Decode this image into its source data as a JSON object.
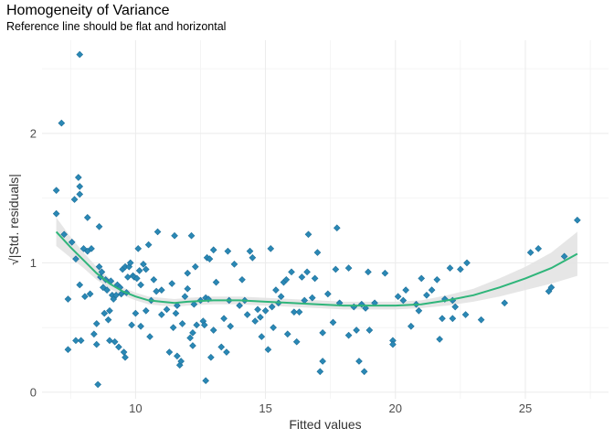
{
  "chart_data": {
    "type": "scatter",
    "title": "Homogeneity of Variance",
    "subtitle": "Reference line should be flat and horizontal",
    "xlabel": "Fitted values",
    "ylabel": "√|Std. residuals|",
    "xlim": [
      6.4,
      28.2
    ],
    "ylim": [
      -0.05,
      2.72
    ],
    "x_ticks": [
      10,
      15,
      20,
      25
    ],
    "y_ticks": [
      0,
      1,
      2
    ],
    "grid": true,
    "colors": {
      "points": "#2a88b5",
      "point_edge": "#1d6f99",
      "smooth": "#2fb57a",
      "band": "#e3e3e3",
      "grid": "#ebebeb"
    },
    "points": [
      [
        6.95,
        1.56
      ],
      [
        6.95,
        1.38
      ],
      [
        7.15,
        2.08
      ],
      [
        7.25,
        1.22
      ],
      [
        7.4,
        0.72
      ],
      [
        7.4,
        0.33
      ],
      [
        7.55,
        1.16
      ],
      [
        7.65,
        1.49
      ],
      [
        7.7,
        0.4
      ],
      [
        7.7,
        1.03
      ],
      [
        7.8,
        1.66
      ],
      [
        7.85,
        1.59
      ],
      [
        7.85,
        2.61
      ],
      [
        7.85,
        1.53
      ],
      [
        7.85,
        0.83
      ],
      [
        7.9,
        0.4
      ],
      [
        8.0,
        1.11
      ],
      [
        8.05,
        0.74
      ],
      [
        8.15,
        1.35
      ],
      [
        8.15,
        1.09
      ],
      [
        8.25,
        0.76
      ],
      [
        8.3,
        1.11
      ],
      [
        8.4,
        0.45
      ],
      [
        8.5,
        0.53
      ],
      [
        8.5,
        0.37
      ],
      [
        8.55,
        0.06
      ],
      [
        8.6,
        1.28
      ],
      [
        8.6,
        0.97
      ],
      [
        8.65,
        0.89
      ],
      [
        8.7,
        0.93
      ],
      [
        8.75,
        0.81
      ],
      [
        8.8,
        0.61
      ],
      [
        8.85,
        0.87
      ],
      [
        8.9,
        0.79
      ],
      [
        8.95,
        0.56
      ],
      [
        9.0,
        0.4
      ],
      [
        9.0,
        0.63
      ],
      [
        9.05,
        0.86
      ],
      [
        9.1,
        0.75
      ],
      [
        9.15,
        0.72
      ],
      [
        9.2,
        0.39
      ],
      [
        9.25,
        0.75
      ],
      [
        9.3,
        0.83
      ],
      [
        9.35,
        0.35
      ],
      [
        9.4,
        0.81
      ],
      [
        9.45,
        0.76
      ],
      [
        9.5,
        0.95
      ],
      [
        9.55,
        0.31
      ],
      [
        9.6,
        0.97
      ],
      [
        9.6,
        0.27
      ],
      [
        9.65,
        0.77
      ],
      [
        9.7,
        0.89
      ],
      [
        9.75,
        0.97
      ],
      [
        9.8,
        1.0
      ],
      [
        9.85,
        0.52
      ],
      [
        9.9,
        0.9
      ],
      [
        9.95,
        0.89
      ],
      [
        10.0,
        0.61
      ],
      [
        10.05,
        0.88
      ],
      [
        10.1,
        1.11
      ],
      [
        10.15,
        0.94
      ],
      [
        10.2,
        0.83
      ],
      [
        10.2,
        0.51
      ],
      [
        10.3,
        0.99
      ],
      [
        10.4,
        0.95
      ],
      [
        10.4,
        0.63
      ],
      [
        10.5,
        1.14
      ],
      [
        10.55,
        0.43
      ],
      [
        10.6,
        0.71
      ],
      [
        10.7,
        0.87
      ],
      [
        10.8,
        0.78
      ],
      [
        10.85,
        1.24
      ],
      [
        11.0,
        0.6
      ],
      [
        11.0,
        0.79
      ],
      [
        11.2,
        0.64
      ],
      [
        11.3,
        0.31
      ],
      [
        11.4,
        0.84
      ],
      [
        11.45,
        0.5
      ],
      [
        11.5,
        1.21
      ],
      [
        11.55,
        0.61
      ],
      [
        11.6,
        0.67
      ],
      [
        11.6,
        0.28
      ],
      [
        11.7,
        0.21
      ],
      [
        11.75,
        0.24
      ],
      [
        11.8,
        0.53
      ],
      [
        11.9,
        0.74
      ],
      [
        12.0,
        0.92
      ],
      [
        12.0,
        0.8
      ],
      [
        12.1,
        0.42
      ],
      [
        12.15,
        1.21
      ],
      [
        12.2,
        0.46
      ],
      [
        12.2,
        0.36
      ],
      [
        12.25,
        0.68
      ],
      [
        12.3,
        0.97
      ],
      [
        12.35,
        0.52
      ],
      [
        12.5,
        0.71
      ],
      [
        12.6,
        0.55
      ],
      [
        12.65,
        0.52
      ],
      [
        12.7,
        0.09
      ],
      [
        12.7,
        0.73
      ],
      [
        12.75,
        1.04
      ],
      [
        12.8,
        0.72
      ],
      [
        12.85,
        1.03
      ],
      [
        12.9,
        0.27
      ],
      [
        13.0,
        1.1
      ],
      [
        13.0,
        0.48
      ],
      [
        13.1,
        0.85
      ],
      [
        13.3,
        0.35
      ],
      [
        13.4,
        0.57
      ],
      [
        13.5,
        0.31
      ],
      [
        13.55,
        1.09
      ],
      [
        13.6,
        0.71
      ],
      [
        13.65,
        0.51
      ],
      [
        13.8,
        0.99
      ],
      [
        14.0,
        0.67
      ],
      [
        14.1,
        0.87
      ],
      [
        14.2,
        0.71
      ],
      [
        14.3,
        0.6
      ],
      [
        14.4,
        1.09
      ],
      [
        14.5,
        1.04
      ],
      [
        14.6,
        0.55
      ],
      [
        14.7,
        0.64
      ],
      [
        14.8,
        0.58
      ],
      [
        14.85,
        0.43
      ],
      [
        15.0,
        0.63
      ],
      [
        15.1,
        0.33
      ],
      [
        15.2,
        1.11
      ],
      [
        15.25,
        0.66
      ],
      [
        15.3,
        0.5
      ],
      [
        15.4,
        0.79
      ],
      [
        15.5,
        0.69
      ],
      [
        15.6,
        0.74
      ],
      [
        15.7,
        0.85
      ],
      [
        15.8,
        0.87
      ],
      [
        15.85,
        0.45
      ],
      [
        16.0,
        0.93
      ],
      [
        16.1,
        0.62
      ],
      [
        16.2,
        0.39
      ],
      [
        16.3,
        0.62
      ],
      [
        16.4,
        0.89
      ],
      [
        16.5,
        0.71
      ],
      [
        16.6,
        0.93
      ],
      [
        16.65,
        1.22
      ],
      [
        16.8,
        0.73
      ],
      [
        16.9,
        0.88
      ],
      [
        17.0,
        1.08
      ],
      [
        17.1,
        0.16
      ],
      [
        17.2,
        0.24
      ],
      [
        17.2,
        0.46
      ],
      [
        17.4,
        0.76
      ],
      [
        17.6,
        0.54
      ],
      [
        17.7,
        0.95
      ],
      [
        17.75,
        1.27
      ],
      [
        17.85,
        0.69
      ],
      [
        18.2,
        0.96
      ],
      [
        18.2,
        0.44
      ],
      [
        18.4,
        0.66
      ],
      [
        18.5,
        0.48
      ],
      [
        18.6,
        0.24
      ],
      [
        18.7,
        0.68
      ],
      [
        18.8,
        0.16
      ],
      [
        18.85,
        0.65
      ],
      [
        18.95,
        0.93
      ],
      [
        19.0,
        0.48
      ],
      [
        19.2,
        0.69
      ],
      [
        19.6,
        0.92
      ],
      [
        19.9,
        0.4
      ],
      [
        19.9,
        0.37
      ],
      [
        20.1,
        0.74
      ],
      [
        20.3,
        0.71
      ],
      [
        20.4,
        0.79
      ],
      [
        20.6,
        0.51
      ],
      [
        20.8,
        0.68
      ],
      [
        20.9,
        0.63
      ],
      [
        21.0,
        0.88
      ],
      [
        21.2,
        0.75
      ],
      [
        21.4,
        0.79
      ],
      [
        21.6,
        0.87
      ],
      [
        21.7,
        0.41
      ],
      [
        21.8,
        0.57
      ],
      [
        21.9,
        0.72
      ],
      [
        22.1,
        0.96
      ],
      [
        22.2,
        0.71
      ],
      [
        22.2,
        0.57
      ],
      [
        22.3,
        0.66
      ],
      [
        22.5,
        0.95
      ],
      [
        22.7,
        0.6
      ],
      [
        22.75,
        1.0
      ],
      [
        23.3,
        0.56
      ],
      [
        24.2,
        0.69
      ],
      [
        25.2,
        1.08
      ],
      [
        25.5,
        1.11
      ],
      [
        25.9,
        0.78
      ],
      [
        26.0,
        0.81
      ],
      [
        26.5,
        1.05
      ],
      [
        27.0,
        1.33
      ]
    ],
    "smooth": {
      "x": [
        6.95,
        7.5,
        8.0,
        8.5,
        9.0,
        9.5,
        10.0,
        10.5,
        11.0,
        11.5,
        12.0,
        13.0,
        14.0,
        15.0,
        16.0,
        17.0,
        18.0,
        19.0,
        20.0,
        21.0,
        22.0,
        23.0,
        24.0,
        25.0,
        26.0,
        27.0
      ],
      "y": [
        1.24,
        1.12,
        1.02,
        0.92,
        0.84,
        0.78,
        0.74,
        0.71,
        0.7,
        0.69,
        0.7,
        0.71,
        0.71,
        0.7,
        0.69,
        0.68,
        0.67,
        0.67,
        0.67,
        0.68,
        0.71,
        0.75,
        0.81,
        0.88,
        0.96,
        1.07
      ],
      "lower": [
        1.13,
        1.04,
        0.96,
        0.87,
        0.8,
        0.75,
        0.71,
        0.68,
        0.67,
        0.66,
        0.67,
        0.68,
        0.68,
        0.67,
        0.66,
        0.65,
        0.64,
        0.64,
        0.64,
        0.65,
        0.67,
        0.7,
        0.74,
        0.79,
        0.84,
        0.9
      ],
      "upper": [
        1.35,
        1.2,
        1.08,
        0.97,
        0.88,
        0.81,
        0.77,
        0.74,
        0.73,
        0.72,
        0.73,
        0.74,
        0.74,
        0.73,
        0.72,
        0.71,
        0.7,
        0.7,
        0.7,
        0.71,
        0.75,
        0.8,
        0.88,
        0.97,
        1.08,
        1.24
      ]
    }
  }
}
